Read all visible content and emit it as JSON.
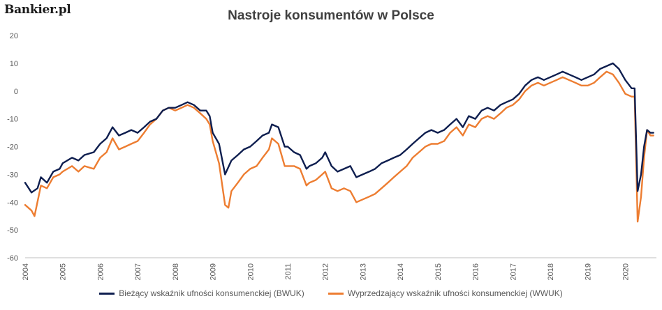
{
  "brand": {
    "logo": "Bankier.pl"
  },
  "chart_data": {
    "type": "line",
    "title": "Nastroje konsumentów w Polsce",
    "xlabel": "",
    "ylabel": "",
    "ylim": [
      -60,
      20
    ],
    "yticks": [
      20,
      10,
      0,
      -10,
      -20,
      -30,
      -40,
      -50,
      -60
    ],
    "xticks": [
      "2004",
      "2005",
      "2006",
      "2007",
      "2008",
      "2009",
      "2010",
      "2011",
      "2012",
      "2013",
      "2014",
      "2015",
      "2016",
      "2017",
      "2018",
      "2019",
      "2020"
    ],
    "grid": false,
    "legend": "bottom",
    "colors": {
      "bwuk": "#0e1e4f",
      "wwuk": "#ed7d31"
    },
    "series": [
      {
        "name": "Bieżący wskaźnik ufności konsumenckiej (BWUK)",
        "points": [
          [
            2004.0,
            -33
          ],
          [
            2004.17,
            -36.5
          ],
          [
            2004.33,
            -35
          ],
          [
            2004.42,
            -31
          ],
          [
            2004.58,
            -33
          ],
          [
            2004.75,
            -29
          ],
          [
            2004.92,
            -28
          ],
          [
            2005.0,
            -26
          ],
          [
            2005.25,
            -24
          ],
          [
            2005.42,
            -25
          ],
          [
            2005.58,
            -23
          ],
          [
            2005.83,
            -22
          ],
          [
            2006.0,
            -19
          ],
          [
            2006.17,
            -17
          ],
          [
            2006.33,
            -13
          ],
          [
            2006.5,
            -16
          ],
          [
            2006.67,
            -15
          ],
          [
            2006.83,
            -14
          ],
          [
            2007.0,
            -15
          ],
          [
            2007.17,
            -13
          ],
          [
            2007.33,
            -11
          ],
          [
            2007.5,
            -10
          ],
          [
            2007.67,
            -7
          ],
          [
            2007.83,
            -6
          ],
          [
            2008.0,
            -6
          ],
          [
            2008.17,
            -5
          ],
          [
            2008.33,
            -4
          ],
          [
            2008.5,
            -5
          ],
          [
            2008.67,
            -7
          ],
          [
            2008.83,
            -7
          ],
          [
            2008.92,
            -9
          ],
          [
            2009.0,
            -15
          ],
          [
            2009.17,
            -19
          ],
          [
            2009.33,
            -30
          ],
          [
            2009.5,
            -25
          ],
          [
            2009.67,
            -23
          ],
          [
            2009.83,
            -21
          ],
          [
            2010.0,
            -20
          ],
          [
            2010.17,
            -18
          ],
          [
            2010.33,
            -16
          ],
          [
            2010.5,
            -15
          ],
          [
            2010.58,
            -12
          ],
          [
            2010.75,
            -13
          ],
          [
            2010.92,
            -20
          ],
          [
            2011.0,
            -20
          ],
          [
            2011.17,
            -22
          ],
          [
            2011.33,
            -23
          ],
          [
            2011.5,
            -28
          ],
          [
            2011.58,
            -27
          ],
          [
            2011.75,
            -26
          ],
          [
            2011.92,
            -24
          ],
          [
            2012.0,
            -22
          ],
          [
            2012.17,
            -27
          ],
          [
            2012.33,
            -29
          ],
          [
            2012.5,
            -28
          ],
          [
            2012.67,
            -27
          ],
          [
            2012.83,
            -31
          ],
          [
            2013.0,
            -30
          ],
          [
            2013.17,
            -29
          ],
          [
            2013.33,
            -28
          ],
          [
            2013.5,
            -26
          ],
          [
            2013.67,
            -25
          ],
          [
            2013.83,
            -24
          ],
          [
            2014.0,
            -23
          ],
          [
            2014.17,
            -21
          ],
          [
            2014.33,
            -19
          ],
          [
            2014.5,
            -17
          ],
          [
            2014.67,
            -15
          ],
          [
            2014.83,
            -14
          ],
          [
            2015.0,
            -15
          ],
          [
            2015.17,
            -14
          ],
          [
            2015.33,
            -12
          ],
          [
            2015.5,
            -10
          ],
          [
            2015.67,
            -13
          ],
          [
            2015.83,
            -9
          ],
          [
            2016.0,
            -10
          ],
          [
            2016.17,
            -7
          ],
          [
            2016.33,
            -6
          ],
          [
            2016.5,
            -7
          ],
          [
            2016.67,
            -5
          ],
          [
            2016.83,
            -4
          ],
          [
            2017.0,
            -3
          ],
          [
            2017.17,
            -1
          ],
          [
            2017.33,
            2
          ],
          [
            2017.5,
            4
          ],
          [
            2017.67,
            5
          ],
          [
            2017.83,
            4
          ],
          [
            2018.0,
            5
          ],
          [
            2018.17,
            6
          ],
          [
            2018.33,
            7
          ],
          [
            2018.5,
            6
          ],
          [
            2018.67,
            5
          ],
          [
            2018.83,
            4
          ],
          [
            2019.0,
            5
          ],
          [
            2019.17,
            6
          ],
          [
            2019.33,
            8
          ],
          [
            2019.5,
            9
          ],
          [
            2019.67,
            10
          ],
          [
            2019.83,
            8
          ],
          [
            2020.0,
            4
          ],
          [
            2020.17,
            1
          ],
          [
            2020.25,
            1
          ],
          [
            2020.33,
            -36
          ],
          [
            2020.42,
            -30
          ],
          [
            2020.5,
            -20
          ],
          [
            2020.58,
            -14
          ],
          [
            2020.67,
            -15
          ],
          [
            2020.75,
            -15
          ]
        ]
      },
      {
        "name": "Wyprzedzający wskaźnik ufności konsumenckiej (WWUK)",
        "points": [
          [
            2004.0,
            -41
          ],
          [
            2004.17,
            -43
          ],
          [
            2004.25,
            -45
          ],
          [
            2004.42,
            -34
          ],
          [
            2004.58,
            -35
          ],
          [
            2004.75,
            -31
          ],
          [
            2004.92,
            -30
          ],
          [
            2005.0,
            -29
          ],
          [
            2005.25,
            -27
          ],
          [
            2005.42,
            -29
          ],
          [
            2005.58,
            -27
          ],
          [
            2005.83,
            -28
          ],
          [
            2006.0,
            -24
          ],
          [
            2006.17,
            -22
          ],
          [
            2006.33,
            -17
          ],
          [
            2006.5,
            -21
          ],
          [
            2006.67,
            -20
          ],
          [
            2006.83,
            -19
          ],
          [
            2007.0,
            -18
          ],
          [
            2007.17,
            -15
          ],
          [
            2007.33,
            -12
          ],
          [
            2007.5,
            -10
          ],
          [
            2007.67,
            -7
          ],
          [
            2007.83,
            -6
          ],
          [
            2008.0,
            -7
          ],
          [
            2008.17,
            -6
          ],
          [
            2008.33,
            -5
          ],
          [
            2008.5,
            -6
          ],
          [
            2008.67,
            -8
          ],
          [
            2008.83,
            -10
          ],
          [
            2008.92,
            -12
          ],
          [
            2009.0,
            -18
          ],
          [
            2009.17,
            -26
          ],
          [
            2009.33,
            -41
          ],
          [
            2009.42,
            -42
          ],
          [
            2009.5,
            -36
          ],
          [
            2009.67,
            -33
          ],
          [
            2009.83,
            -30
          ],
          [
            2010.0,
            -28
          ],
          [
            2010.17,
            -27
          ],
          [
            2010.33,
            -24
          ],
          [
            2010.5,
            -21
          ],
          [
            2010.58,
            -17
          ],
          [
            2010.75,
            -19
          ],
          [
            2010.92,
            -27
          ],
          [
            2011.0,
            -27
          ],
          [
            2011.17,
            -27
          ],
          [
            2011.33,
            -28
          ],
          [
            2011.5,
            -34
          ],
          [
            2011.58,
            -33
          ],
          [
            2011.75,
            -32
          ],
          [
            2011.92,
            -30
          ],
          [
            2012.0,
            -29
          ],
          [
            2012.17,
            -35
          ],
          [
            2012.33,
            -36
          ],
          [
            2012.5,
            -35
          ],
          [
            2012.67,
            -36
          ],
          [
            2012.83,
            -40
          ],
          [
            2013.0,
            -39
          ],
          [
            2013.17,
            -38
          ],
          [
            2013.33,
            -37
          ],
          [
            2013.5,
            -35
          ],
          [
            2013.67,
            -33
          ],
          [
            2013.83,
            -31
          ],
          [
            2014.0,
            -29
          ],
          [
            2014.17,
            -27
          ],
          [
            2014.33,
            -24
          ],
          [
            2014.5,
            -22
          ],
          [
            2014.67,
            -20
          ],
          [
            2014.83,
            -19
          ],
          [
            2015.0,
            -19
          ],
          [
            2015.17,
            -18
          ],
          [
            2015.33,
            -15
          ],
          [
            2015.5,
            -13
          ],
          [
            2015.67,
            -16
          ],
          [
            2015.83,
            -12
          ],
          [
            2016.0,
            -13
          ],
          [
            2016.17,
            -10
          ],
          [
            2016.33,
            -9
          ],
          [
            2016.5,
            -10
          ],
          [
            2016.67,
            -8
          ],
          [
            2016.83,
            -6
          ],
          [
            2017.0,
            -5
          ],
          [
            2017.17,
            -3
          ],
          [
            2017.33,
            0
          ],
          [
            2017.5,
            2
          ],
          [
            2017.67,
            3
          ],
          [
            2017.83,
            2
          ],
          [
            2018.0,
            3
          ],
          [
            2018.17,
            4
          ],
          [
            2018.33,
            5
          ],
          [
            2018.5,
            4
          ],
          [
            2018.67,
            3
          ],
          [
            2018.83,
            2
          ],
          [
            2019.0,
            2
          ],
          [
            2019.17,
            3
          ],
          [
            2019.33,
            5
          ],
          [
            2019.5,
            7
          ],
          [
            2019.67,
            6
          ],
          [
            2019.83,
            3
          ],
          [
            2020.0,
            -1
          ],
          [
            2020.17,
            -2
          ],
          [
            2020.25,
            -2
          ],
          [
            2020.33,
            -47
          ],
          [
            2020.42,
            -38
          ],
          [
            2020.5,
            -24
          ],
          [
            2020.58,
            -14
          ],
          [
            2020.67,
            -16
          ],
          [
            2020.75,
            -16
          ]
        ]
      }
    ]
  }
}
